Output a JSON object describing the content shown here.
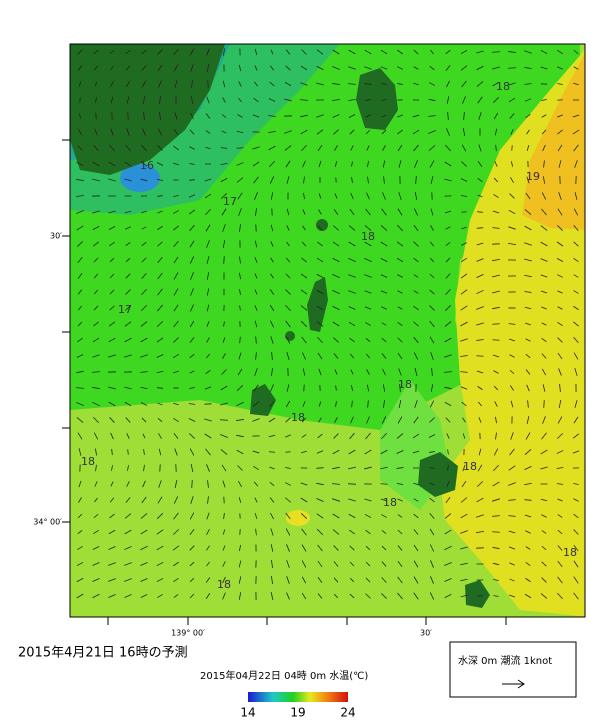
{
  "map": {
    "lat_labels": [
      "30′",
      "34° 00′"
    ],
    "lon_labels": [
      "139° 00′",
      "30′"
    ],
    "contour_labels": [
      16,
      17,
      18,
      17,
      18,
      18,
      18,
      18,
      18,
      18,
      18,
      18,
      19
    ],
    "title": "2015年4月21日  16時の予測",
    "subtitle": "2015年04月22日 04時 0m 水温(℃)",
    "colorbar": {
      "range": [
        14,
        24
      ],
      "ticks": [
        14,
        19,
        24
      ]
    },
    "legend": "水深 0m 潮流 1knot"
  }
}
